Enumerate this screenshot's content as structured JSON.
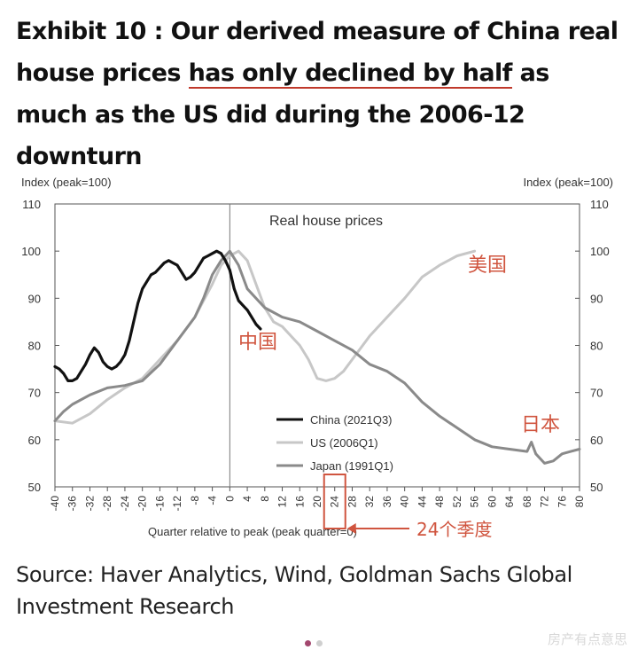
{
  "title": {
    "before": "Exhibit 10 : Our derived measure of China real house prices ",
    "highlight": "has only declined by half",
    "after": " as much as the US did during the 2006-12 downturn"
  },
  "source": "Source: Haver Analytics, Wind, Goldman Sachs Global Investment Research",
  "watermark": "房产有点意思",
  "carousel": {
    "active_color": "#a3476e",
    "inactive_color": "#cfcfcf"
  },
  "chart_data": {
    "type": "line",
    "title": "Real house prices",
    "ylabel_left": "Index (peak=100)",
    "ylabel_right": "Index (peak=100)",
    "xlabel": "Quarter relative to peak (peak quarter=0)",
    "xlim": [
      -40,
      80
    ],
    "ylim": [
      50,
      110
    ],
    "yticks": [
      50,
      60,
      70,
      80,
      90,
      100,
      110
    ],
    "xticks": [
      -40,
      -36,
      -32,
      -28,
      -24,
      -20,
      -16,
      -12,
      -8,
      -4,
      0,
      4,
      8,
      12,
      16,
      20,
      24,
      28,
      32,
      36,
      40,
      44,
      48,
      52,
      56,
      60,
      64,
      68,
      72,
      76,
      80
    ],
    "legend": {
      "position": "bottom-center",
      "entries": [
        "China (2021Q3)",
        "US (2006Q1)",
        "Japan (1991Q1)"
      ]
    },
    "annotations": {
      "china": "中国",
      "us": "美国",
      "japan": "日本",
      "box_tick": 24,
      "box_label": "24个季度"
    },
    "colors": {
      "China": "#111111",
      "US": "#c7c7c7",
      "Japan": "#8a8a8a",
      "annotation": "#d0553f"
    },
    "series": [
      {
        "name": "China (2021Q3)",
        "x": [
          -40,
          -39,
          -38,
          -37,
          -36,
          -35,
          -34,
          -33,
          -32,
          -31,
          -30,
          -29,
          -28,
          -27,
          -26,
          -25,
          -24,
          -23,
          -22,
          -21,
          -20,
          -19,
          -18,
          -17,
          -16,
          -15,
          -14,
          -13,
          -12,
          -11,
          -10,
          -9,
          -8,
          -7,
          -6,
          -5,
          -4,
          -3,
          -2,
          -1,
          0,
          1,
          2,
          3,
          4,
          5,
          6,
          7
        ],
        "y": [
          75.5,
          75,
          74,
          72.5,
          72.5,
          73,
          74.5,
          76,
          78,
          79.5,
          78.5,
          76.5,
          75.5,
          75,
          75.5,
          76.5,
          78,
          81,
          85,
          89,
          92,
          93.5,
          95,
          95.5,
          96.5,
          97.5,
          98,
          97.5,
          97,
          95.5,
          94,
          94.5,
          95.5,
          97,
          98.5,
          99,
          99.5,
          100,
          99.5,
          98,
          96,
          92,
          89.5,
          88.5,
          87.5,
          86,
          84.5,
          83.5
        ]
      },
      {
        "name": "US (2006Q1)",
        "x": [
          -40,
          -36,
          -32,
          -28,
          -24,
          -20,
          -16,
          -12,
          -8,
          -4,
          -2,
          0,
          2,
          4,
          6,
          8,
          10,
          12,
          14,
          16,
          18,
          20,
          22,
          24,
          26,
          28,
          32,
          36,
          40,
          44,
          48,
          52,
          56
        ],
        "y": [
          64,
          63.5,
          65.5,
          68.5,
          71,
          73,
          77,
          81,
          86,
          93,
          97,
          99,
          100,
          98,
          93,
          88,
          85,
          84,
          82,
          80,
          77,
          73,
          72.5,
          73,
          74.5,
          77,
          82,
          86,
          90,
          94.5,
          97,
          99,
          100
        ]
      },
      {
        "name": "Japan (1991Q1)",
        "x": [
          -40,
          -38,
          -36,
          -32,
          -28,
          -24,
          -20,
          -16,
          -12,
          -8,
          -6,
          -4,
          -2,
          0,
          2,
          4,
          8,
          12,
          16,
          20,
          24,
          28,
          32,
          36,
          40,
          44,
          48,
          52,
          56,
          60,
          64,
          68,
          69,
          70,
          72,
          74,
          76,
          78,
          80
        ],
        "y": [
          64,
          66,
          67.5,
          69.5,
          71,
          71.5,
          72.5,
          76,
          81,
          86,
          90,
          95,
          98,
          100,
          97,
          92,
          88,
          86,
          85,
          83,
          81,
          79,
          76,
          74.5,
          72,
          68,
          65,
          62.5,
          60,
          58.5,
          58,
          57.5,
          59.5,
          57,
          55,
          55.5,
          57,
          57.5,
          58
        ]
      }
    ]
  }
}
